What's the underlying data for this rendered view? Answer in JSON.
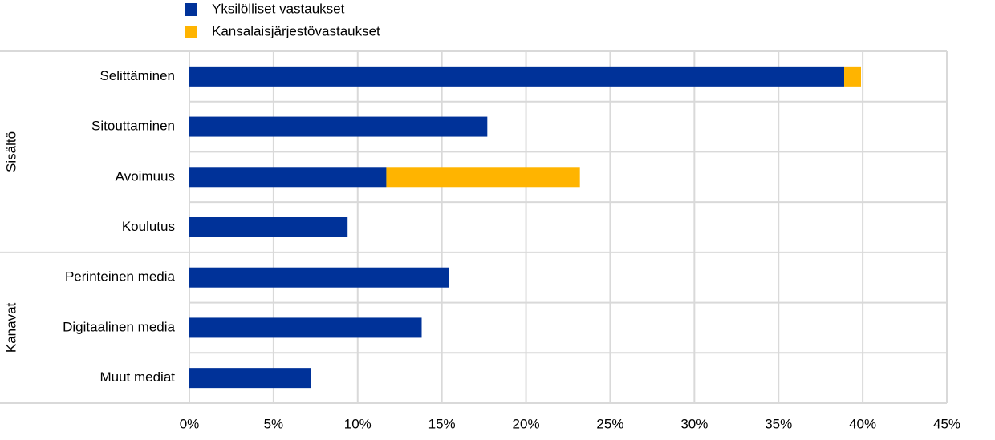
{
  "chart_data": {
    "type": "stacked-bar-horizontal",
    "groups": [
      {
        "name": "Sisältö",
        "categories": [
          "Selittäminen",
          "Sitouttaminen",
          "Avoimuus",
          "Koulutus"
        ]
      },
      {
        "name": "Kanavat",
        "categories": [
          "Perinteinen media",
          "Digitaalinen media",
          "Muut mediat"
        ]
      }
    ],
    "series": [
      {
        "name": "Yksilölliset vastaukset",
        "color": "#003299",
        "values": [
          38.9,
          17.7,
          11.7,
          9.4,
          15.4,
          13.8,
          7.2
        ]
      },
      {
        "name": "Kansalaisjärjestövastaukset",
        "color": "#ffb400",
        "values": [
          1.0,
          null,
          11.5,
          null,
          null,
          null,
          null
        ]
      }
    ],
    "xlim": [
      0,
      45
    ],
    "xticks": [
      {
        "value": 0,
        "label": "0%"
      },
      {
        "value": 5,
        "label": "5%"
      },
      {
        "value": 10,
        "label": "10%"
      },
      {
        "value": 15,
        "label": "15%"
      },
      {
        "value": 20,
        "label": "20%"
      },
      {
        "value": 25,
        "label": "25%"
      },
      {
        "value": 30,
        "label": "30%"
      },
      {
        "value": 35,
        "label": "35%"
      },
      {
        "value": 40,
        "label": "40%"
      },
      {
        "value": 45,
        "label": "45%"
      }
    ],
    "grid": true
  }
}
